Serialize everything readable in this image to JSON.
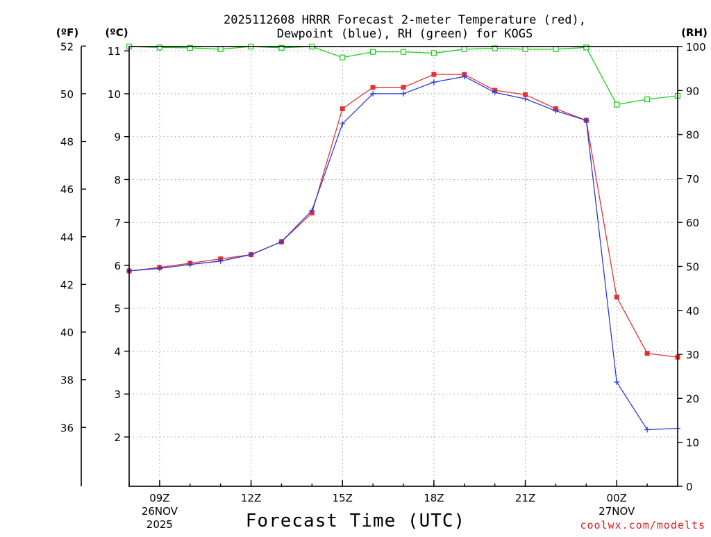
{
  "chart_data": {
    "type": "line",
    "title_line1": "2025112608 HRRR Forecast 2-meter Temperature (red),",
    "title_line2": "Dewpoint (blue), RH (green) for KOGS",
    "xlabel": "Forecast Time (UTC)",
    "credit": "coolwx.com/modelts",
    "units": {
      "fahrenheit": "(ºF)",
      "celsius": "(ºC)",
      "rh": "(RH)"
    },
    "x_hours": [
      8,
      9,
      10,
      11,
      12,
      13,
      14,
      15,
      16,
      17,
      18,
      19,
      20,
      21,
      22,
      23,
      24,
      25,
      26
    ],
    "xlim": [
      8,
      26
    ],
    "x_ticks": [
      {
        "hour": 9,
        "label": "09Z",
        "date": "26NOV",
        "year": "2025"
      },
      {
        "hour": 12,
        "label": "12Z",
        "date": "",
        "year": ""
      },
      {
        "hour": 15,
        "label": "15Z",
        "date": "",
        "year": ""
      },
      {
        "hour": 18,
        "label": "18Z",
        "date": "",
        "year": ""
      },
      {
        "hour": 21,
        "label": "21Z",
        "date": "",
        "year": ""
      },
      {
        "hour": 24,
        "label": "00Z",
        "date": "27NOV",
        "year": ""
      }
    ],
    "celsius_axis": {
      "ylim": [
        0.85,
        11.1
      ],
      "ticks": [
        2,
        3,
        4,
        5,
        6,
        7,
        8,
        9,
        10,
        11
      ]
    },
    "fahrenheit_ticks": [
      36,
      38,
      40,
      42,
      44,
      46,
      48,
      50,
      52
    ],
    "rh_axis": {
      "ylim": [
        0,
        100
      ],
      "ticks": [
        0,
        10,
        20,
        30,
        40,
        50,
        60,
        70,
        80,
        90,
        100
      ]
    },
    "series": [
      {
        "name": "2-meter Temperature",
        "units": "C",
        "color": "#e8302e",
        "marker": "square",
        "values": [
          5.87,
          5.95,
          6.05,
          6.15,
          6.25,
          6.55,
          7.22,
          9.65,
          10.15,
          10.15,
          10.45,
          10.45,
          10.08,
          9.98,
          9.65,
          9.38,
          5.26,
          3.95,
          3.86
        ]
      },
      {
        "name": "Dewpoint",
        "units": "C",
        "color": "#2a38e0",
        "marker": "plus",
        "values": [
          5.87,
          5.93,
          6.02,
          6.1,
          6.25,
          6.55,
          7.28,
          9.3,
          10.0,
          10.0,
          10.27,
          10.4,
          10.03,
          9.88,
          9.6,
          9.38,
          3.28,
          2.17,
          2.2
        ]
      },
      {
        "name": "RH",
        "units": "%",
        "color": "#22cc22",
        "marker": "open-square",
        "values": [
          100,
          99.8,
          99.7,
          99.4,
          100,
          99.7,
          100,
          97.5,
          98.8,
          98.8,
          98.5,
          99.4,
          99.6,
          99.4,
          99.4,
          99.8,
          86.8,
          88.0,
          88.8
        ]
      }
    ]
  }
}
